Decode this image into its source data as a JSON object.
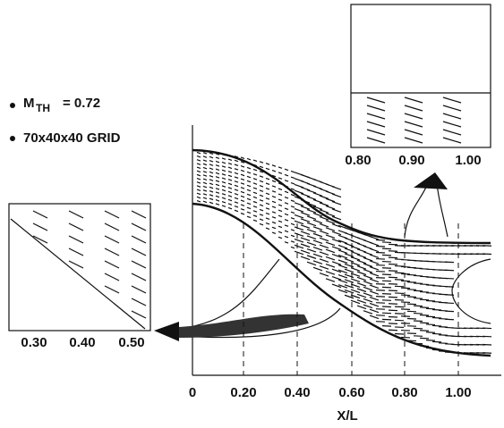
{
  "notes": [
    {
      "symbol": "M",
      "subscript": "TH",
      "text": "= 0.72"
    },
    {
      "text": "70x40x40 GRID"
    }
  ],
  "main_axis": {
    "ticks": [
      "0",
      "0.20",
      "0.40",
      "0.60",
      "0.80",
      "1.00"
    ],
    "label": "X/L"
  },
  "right_inset": {
    "ticks": [
      "0.80",
      "0.90",
      "1.00"
    ]
  },
  "left_inset": {
    "ticks": [
      "0.30",
      "0.40",
      "0.50"
    ]
  }
}
